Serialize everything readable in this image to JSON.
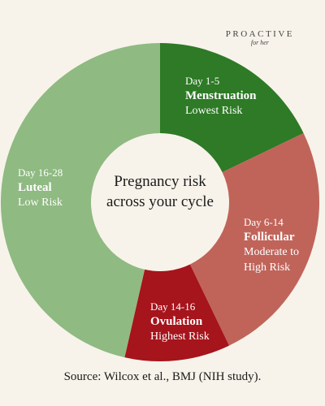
{
  "brand": {
    "name": "PROACTIVE",
    "tagline": "for her"
  },
  "chart_data": {
    "type": "donut",
    "title": "Pregnancy risk across your cycle",
    "categories": [
      "Menstruation",
      "Follicular",
      "Ovulation",
      "Luteal"
    ],
    "days": [
      "Day 1-5",
      "Day 6-14",
      "Day 14-16",
      "Day 16-28"
    ],
    "risks": [
      "Lowest Risk",
      "Moderate to High Risk",
      "Highest Risk",
      "Low Risk"
    ],
    "values": [
      5,
      7,
      3,
      13
    ],
    "colors": [
      "#2e7a26",
      "#c0645a",
      "#a6141c",
      "#8fba82"
    ],
    "source": "Source: Wilcox et al., BMJ (NIH study)."
  }
}
